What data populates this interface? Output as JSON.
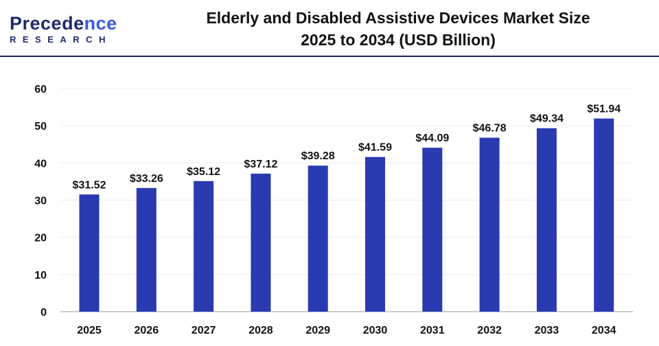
{
  "logo": {
    "line1_a": "P",
    "line1_b": "recede",
    "line1_c": "nce",
    "line2": "RESEARCH"
  },
  "chart_data": {
    "type": "bar",
    "title_line1": "Elderly and Disabled Assistive Devices Market Size",
    "title_line2": "2025 to 2034 (USD Billion)",
    "categories": [
      "2025",
      "2026",
      "2027",
      "2028",
      "2029",
      "2030",
      "2031",
      "2032",
      "2033",
      "2034"
    ],
    "values": [
      31.52,
      33.26,
      35.12,
      37.12,
      39.28,
      41.59,
      44.09,
      46.78,
      49.34,
      51.94
    ],
    "data_labels": [
      "$31.52",
      "$33.26",
      "$35.12",
      "$37.12",
      "$39.28",
      "$41.59",
      "$44.09",
      "$46.78",
      "$49.34",
      "$51.94"
    ],
    "yticks": [
      "0",
      "10",
      "20",
      "30",
      "40",
      "50",
      "60"
    ],
    "ylim": [
      0,
      60
    ],
    "xlabel": "",
    "ylabel": "",
    "grid": true,
    "bar_color": "#2a3ab0"
  }
}
